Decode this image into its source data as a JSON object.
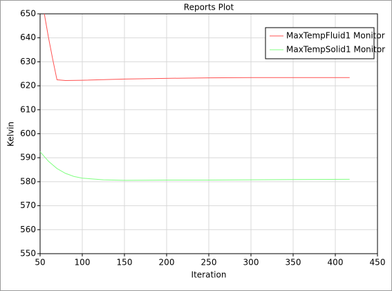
{
  "chart_data": {
    "type": "line",
    "title": "Reports Plot",
    "x_label": "Iteration",
    "y_label": "Kelvin",
    "series": [
      {
        "name": "MaxTempFluid1 Monitor",
        "color": "#ff5050",
        "x": [
          55,
          60,
          65,
          70,
          80,
          100,
          150,
          200,
          250,
          300,
          350,
          417
        ],
        "values": [
          650,
          640,
          631,
          622.5,
          622.2,
          622.3,
          622.8,
          623.1,
          623.3,
          623.4,
          623.4,
          623.4
        ]
      },
      {
        "name": "MaxTempSolid1 Monitor",
        "color": "#80ff80",
        "x": [
          50,
          60,
          70,
          80,
          90,
          100,
          125,
          150,
          200,
          250,
          300,
          350,
          417
        ],
        "values": [
          592.5,
          588.5,
          585.5,
          583.5,
          582.2,
          581.5,
          580.8,
          580.6,
          580.7,
          580.7,
          580.8,
          580.9,
          581.0
        ]
      }
    ],
    "xlim": [
      50,
      450
    ],
    "xticks": [
      50,
      100,
      150,
      200,
      250,
      300,
      350,
      400,
      450
    ],
    "ylim": [
      550,
      650
    ],
    "yticks": [
      550,
      560,
      570,
      580,
      590,
      600,
      610,
      620,
      630,
      640,
      650
    ],
    "grid": true,
    "legend": "upper right"
  }
}
